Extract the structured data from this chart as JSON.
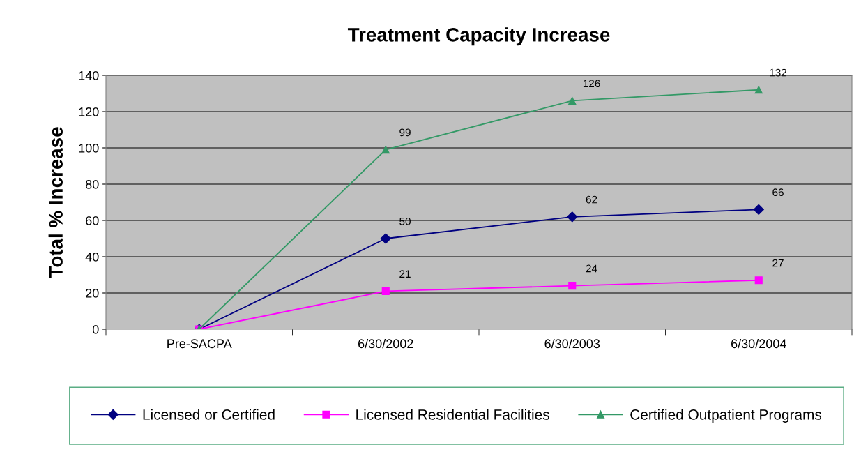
{
  "chart_data": {
    "type": "line",
    "title": "Treatment Capacity Increase",
    "ylabel": "Total % Increase",
    "categories": [
      "Pre-SACPA",
      "6/30/2002",
      "6/30/2003",
      "6/30/2004"
    ],
    "series": [
      {
        "name": "Licensed or Certified",
        "color": "#000080",
        "marker": "diamond",
        "values": [
          0,
          50,
          62,
          66
        ],
        "value_labels": [
          null,
          "50",
          "62",
          "66"
        ]
      },
      {
        "name": "Licensed Residential Facilities",
        "color": "#ff00ff",
        "marker": "square",
        "values": [
          0,
          21,
          24,
          27
        ],
        "value_labels": [
          null,
          "21",
          "24",
          "27"
        ]
      },
      {
        "name": "Certified Outpatient Programs",
        "color": "#339966",
        "marker": "triangle",
        "values": [
          0,
          99,
          126,
          132
        ],
        "value_labels": [
          null,
          "99",
          "126",
          "132"
        ]
      }
    ],
    "ylim": [
      0,
      140
    ],
    "yticks": [
      0,
      20,
      40,
      60,
      80,
      100,
      120,
      140
    ],
    "grid": "y",
    "legend": "bottom"
  }
}
